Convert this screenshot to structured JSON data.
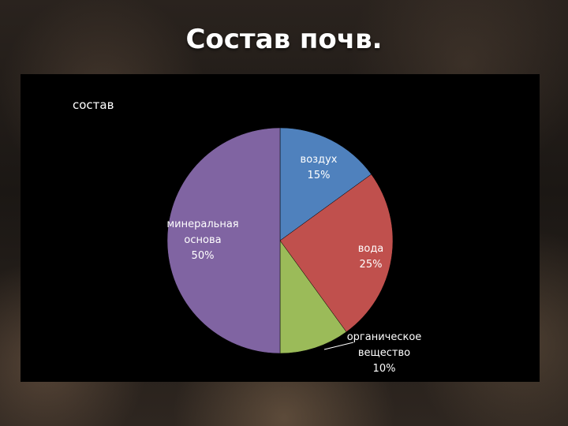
{
  "slide": {
    "title": "Состав почв."
  },
  "colors": {
    "background": "#000000",
    "text": "#ffffff"
  },
  "chart_data": {
    "type": "pie",
    "title": "состав",
    "slices": [
      {
        "label": [
          "воздух"
        ],
        "value": 15,
        "value_text": "15%",
        "color": "#4f81bd"
      },
      {
        "label": [
          "вода"
        ],
        "value": 25,
        "value_text": "25%",
        "color": "#c0504d"
      },
      {
        "label": [
          "органическое",
          "вещество"
        ],
        "value": 10,
        "value_text": "10%",
        "color": "#9bbb59"
      },
      {
        "label": [
          "минеральная",
          "основа"
        ],
        "value": 50,
        "value_text": "50%",
        "color": "#8064a2"
      }
    ],
    "start_angle_deg": 0,
    "direction": "clockwise",
    "legend": "none"
  }
}
